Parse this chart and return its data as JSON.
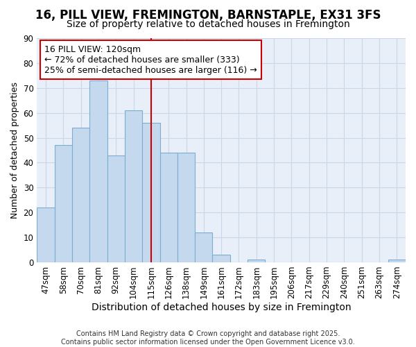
{
  "title": "16, PILL VIEW, FREMINGTON, BARNSTAPLE, EX31 3FS",
  "subtitle": "Size of property relative to detached houses in Fremington",
  "xlabel": "Distribution of detached houses by size in Fremington",
  "ylabel": "Number of detached properties",
  "categories": [
    "47sqm",
    "58sqm",
    "70sqm",
    "81sqm",
    "92sqm",
    "104sqm",
    "115sqm",
    "126sqm",
    "138sqm",
    "149sqm",
    "161sqm",
    "172sqm",
    "183sqm",
    "195sqm",
    "206sqm",
    "217sqm",
    "229sqm",
    "240sqm",
    "251sqm",
    "263sqm",
    "274sqm"
  ],
  "values": [
    22,
    47,
    54,
    73,
    43,
    61,
    56,
    44,
    44,
    12,
    3,
    0,
    1,
    0,
    0,
    0,
    0,
    0,
    0,
    0,
    1
  ],
  "bar_color": "#c5d9ee",
  "bar_edgecolor": "#7aaed0",
  "grid_color": "#c8d8e8",
  "background_color": "#ffffff",
  "plot_bg_color": "#e8eff8",
  "vline_x": 6.0,
  "vline_color": "#cc0000",
  "annotation_box_text": "16 PILL VIEW: 120sqm\n← 72% of detached houses are smaller (333)\n25% of semi-detached houses are larger (116) →",
  "footer": "Contains HM Land Registry data © Crown copyright and database right 2025.\nContains public sector information licensed under the Open Government Licence v3.0.",
  "ylim": [
    0,
    90
  ],
  "yticks": [
    0,
    10,
    20,
    30,
    40,
    50,
    60,
    70,
    80,
    90
  ],
  "title_fontsize": 12,
  "subtitle_fontsize": 10,
  "xlabel_fontsize": 10,
  "ylabel_fontsize": 9,
  "tick_fontsize": 8.5,
  "footer_fontsize": 7,
  "annotation_fontsize": 9
}
